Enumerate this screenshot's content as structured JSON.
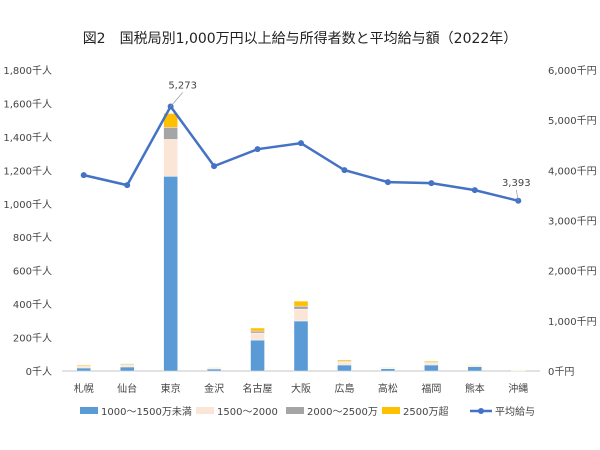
{
  "chart_data": {
    "type": "bar+line",
    "title": "図2　国税局別1,000万円以上給与所得者数と平均給与額（2022年）",
    "categories": [
      "札幌",
      "仙台",
      "東京",
      "金沢",
      "名古屋",
      "大阪",
      "広島",
      "高松",
      "福岡",
      "熊本",
      "沖縄"
    ],
    "y_left": {
      "ticks": [
        "0千人",
        "200千人",
        "400千人",
        "600千人",
        "800千人",
        "1,000千人",
        "1,200千人",
        "1,400千人",
        "1,600千人",
        "1,800千人"
      ],
      "range": [
        0,
        1800
      ]
    },
    "y_right": {
      "ticks": [
        "0千円",
        "1,000千円",
        "2,000千円",
        "3,000千円",
        "4,000千円",
        "5,000千円",
        "6,000千円"
      ],
      "range": [
        0,
        6000
      ]
    },
    "series": [
      {
        "name": "1000～1500万未満",
        "type": "bar",
        "color": "#5b9bd5",
        "values": [
          18,
          24,
          1164,
          12,
          185,
          299,
          36,
          14,
          36,
          26,
          3
        ]
      },
      {
        "name": "1500～2000",
        "type": "bar",
        "color": "#fbe5d6",
        "values": [
          10,
          11,
          221,
          6,
          42,
          71,
          18,
          5,
          12,
          7,
          2
        ]
      },
      {
        "name": "2000～2500万",
        "type": "bar",
        "color": "#a5a5a5",
        "values": [
          4,
          4,
          72,
          2,
          12,
          18,
          5,
          2,
          4,
          2,
          1
        ]
      },
      {
        "name": "2500万超",
        "type": "bar",
        "color": "#ffc000",
        "values": [
          5,
          5,
          83,
          2,
          18,
          30,
          7,
          2,
          6,
          3,
          1
        ]
      },
      {
        "name": "平均給与",
        "type": "line",
        "axis": "right",
        "color": "#4472c4",
        "values": [
          3905,
          3705,
          5273,
          4084,
          4422,
          4542,
          4004,
          3765,
          3745,
          3606,
          3393
        ]
      }
    ],
    "data_labels": [
      {
        "category": "東京",
        "text": "5,273"
      },
      {
        "category": "沖縄",
        "text": "3,393"
      }
    ],
    "grid": false,
    "legend": "bottom"
  }
}
